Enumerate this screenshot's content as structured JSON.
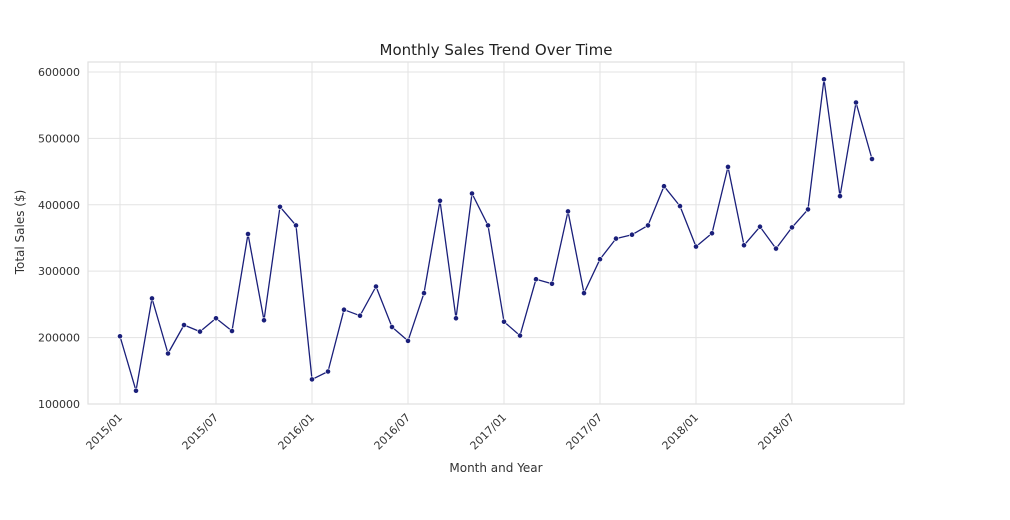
{
  "chart_data": {
    "type": "line",
    "title": "Monthly Sales Trend Over Time",
    "xlabel": "Month and Year",
    "ylabel": "Total Sales ($)",
    "x_ticks": [
      "2015/01",
      "2015/07",
      "2016/01",
      "2016/07",
      "2017/01",
      "2017/07",
      "2018/01",
      "2018/07"
    ],
    "y_ticks": [
      "100000",
      "200000",
      "300000",
      "400000",
      "500000",
      "600000"
    ],
    "ylim": [
      100000,
      615000
    ],
    "xlim": [
      "2014-11",
      "2019-02"
    ],
    "grid": true,
    "line_color": "#1a1f7a",
    "marker_color": "#1a1f7a",
    "series": [
      {
        "x": [
          "2015-01",
          "2015-02",
          "2015-03",
          "2015-04",
          "2015-05",
          "2015-06",
          "2015-07",
          "2015-08",
          "2015-09",
          "2015-10",
          "2015-11",
          "2015-12",
          "2016-01",
          "2016-02",
          "2016-03",
          "2016-04",
          "2016-05",
          "2016-06",
          "2016-07",
          "2016-08",
          "2016-09",
          "2016-10",
          "2016-11",
          "2016-12",
          "2017-01",
          "2017-02",
          "2017-03",
          "2017-04",
          "2017-05",
          "2017-06",
          "2017-07",
          "2017-08",
          "2017-09",
          "2017-10",
          "2017-11",
          "2017-12",
          "2018-01",
          "2018-02",
          "2018-03",
          "2018-04",
          "2018-05",
          "2018-06",
          "2018-07",
          "2018-08",
          "2018-09",
          "2018-10",
          "2018-11",
          "2018-12"
        ],
        "values": [
          202000,
          120000,
          259000,
          176000,
          219000,
          209000,
          229000,
          210000,
          356000,
          226000,
          397000,
          369000,
          137000,
          149000,
          242000,
          233000,
          277000,
          216000,
          195000,
          267000,
          406000,
          229000,
          417000,
          369000,
          224000,
          203000,
          288000,
          281000,
          390000,
          267000,
          318000,
          349000,
          355000,
          369000,
          428000,
          398000,
          337000,
          357000,
          457000,
          339000,
          367000,
          334000,
          366000,
          393000,
          589000,
          413000,
          554000,
          469000
        ]
      }
    ]
  }
}
